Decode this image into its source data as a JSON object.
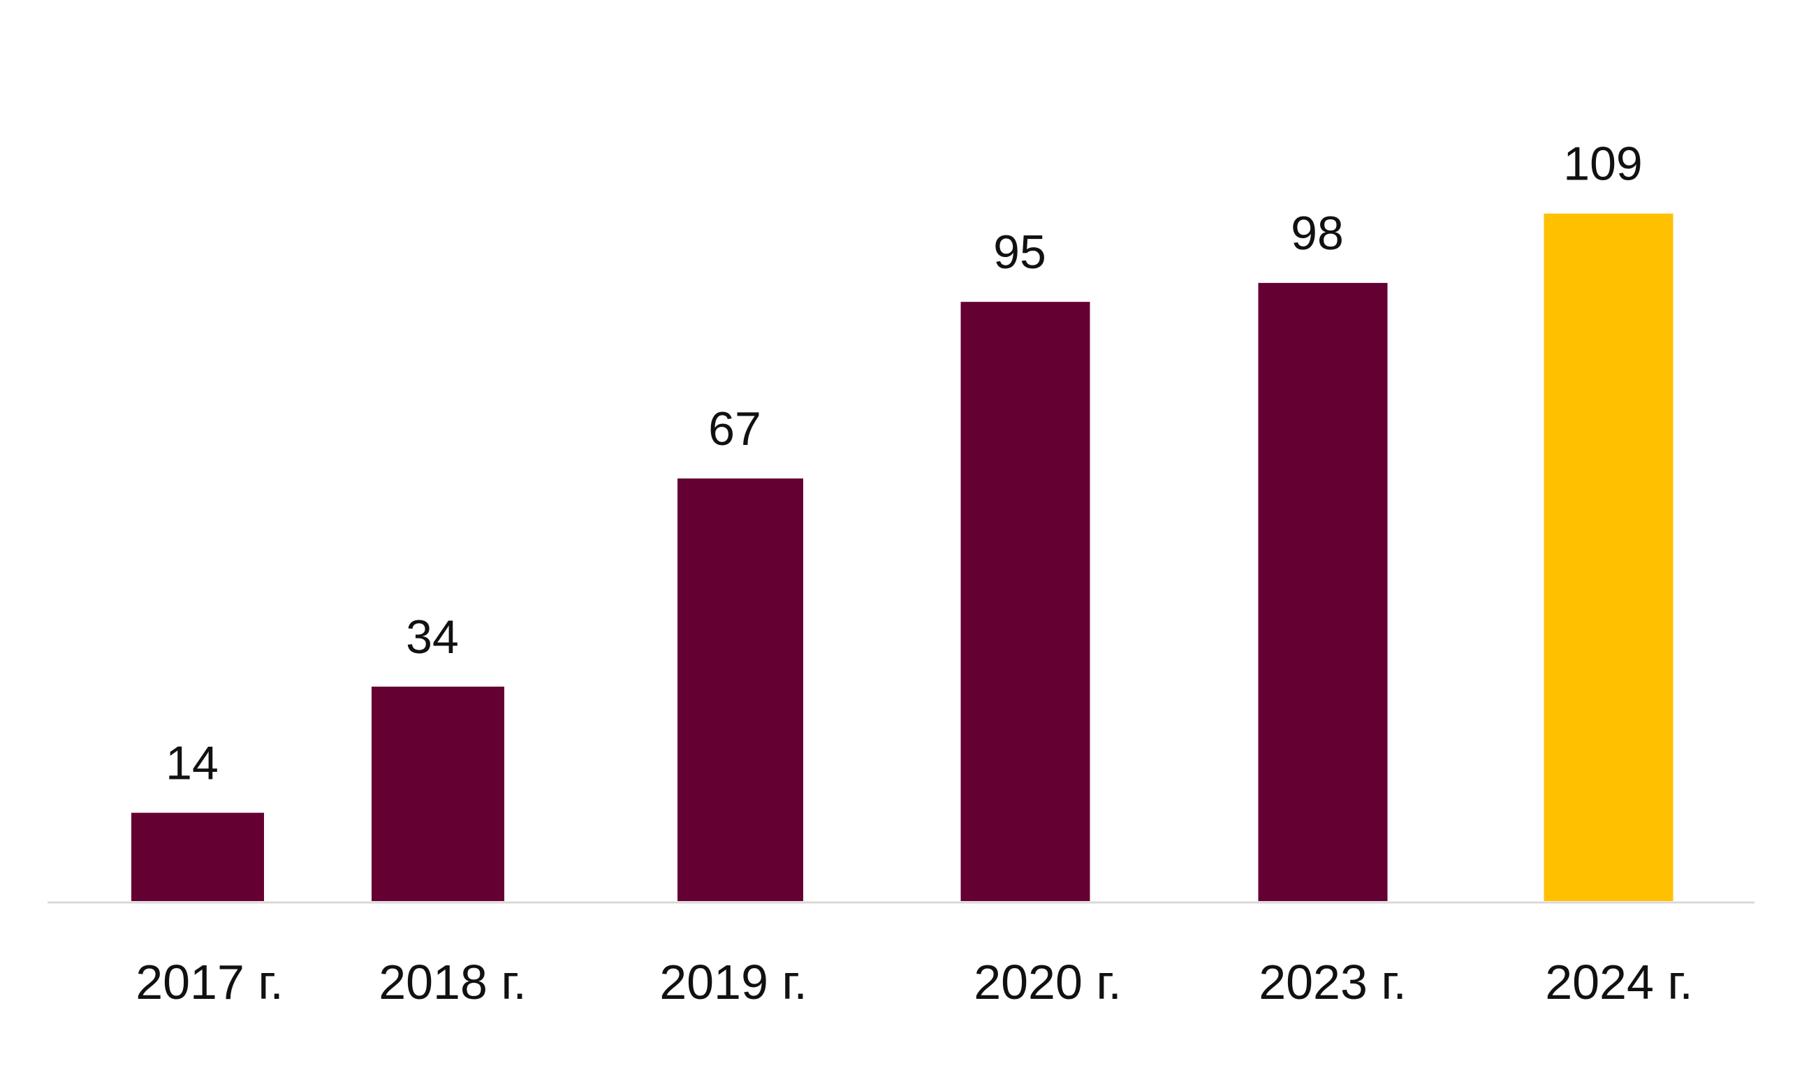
{
  "chart_data": {
    "type": "bar",
    "categories": [
      "2017 г.",
      "2018 г.",
      "2019 г.",
      "2020 г.",
      "2023 г.",
      "2024 г."
    ],
    "values": [
      14,
      34,
      67,
      95,
      98,
      109
    ],
    "data_labels": [
      "14",
      "34",
      "67",
      "95",
      "98",
      "109"
    ],
    "title": "",
    "xlabel": "",
    "ylabel": "",
    "ylim": [
      0,
      109
    ],
    "grid": false,
    "legend": "none",
    "colors": {
      "default_bar": "#650033",
      "highlight_bar": "#FFC000",
      "axis": "#d9d9d9"
    },
    "highlight_index": 5
  }
}
